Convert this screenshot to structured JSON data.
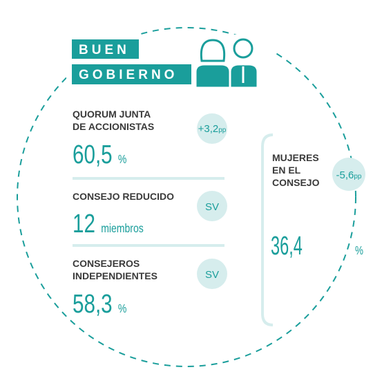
{
  "header": {
    "line1": "BUEN",
    "line2": "GOBIERNO"
  },
  "metrics": [
    {
      "label_lines": [
        "QUORUM JUNTA",
        "DE ACCIONISTAS"
      ],
      "change": "+3,2",
      "change_unit": "pp",
      "value": "60,5",
      "unit": "%"
    },
    {
      "label_lines": [
        "CONSEJO REDUCIDO"
      ],
      "change": "SV",
      "value": "12",
      "unit": "miembros"
    },
    {
      "label_lines": [
        "CONSEJEROS",
        "INDEPENDIENTES"
      ],
      "change": "SV",
      "value": "58,3",
      "unit": "%"
    }
  ],
  "highlight": {
    "label_lines": [
      "MUJERES",
      "EN EL",
      "CONSEJO"
    ],
    "change": "-5,6",
    "change_unit": "pp",
    "value": "36,4",
    "unit": "%"
  }
}
